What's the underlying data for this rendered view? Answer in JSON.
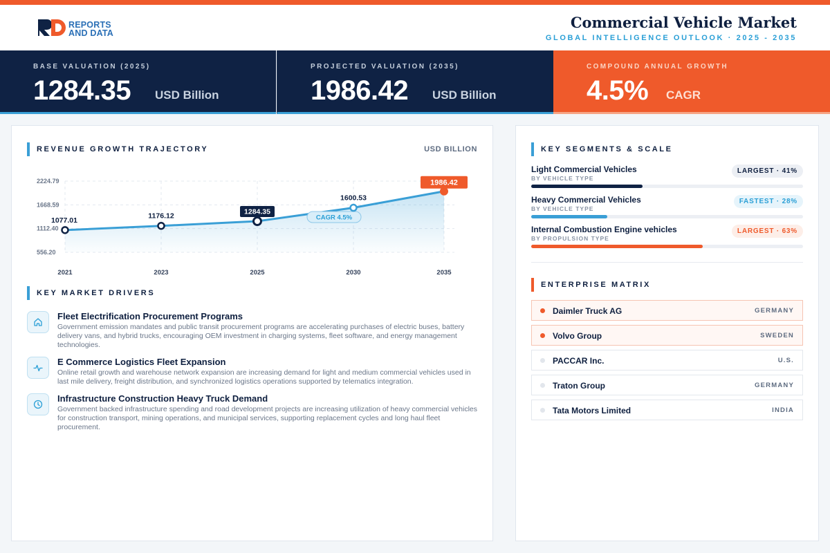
{
  "header": {
    "brand_line1": "REPORTS",
    "brand_line2": "AND DATA",
    "title": "Commercial Vehicle Market",
    "subtitle": "GLOBAL INTELLIGENCE OUTLOOK  ·  2025 - 2035"
  },
  "stats": [
    {
      "label": "BASE VALUATION (2025)",
      "value": "1284.35",
      "unit": "USD Billion"
    },
    {
      "label": "PROJECTED VALUATION (2035)",
      "value": "1986.42",
      "unit": "USD Billion"
    },
    {
      "label": "COMPOUND ANNUAL GROWTH",
      "value": "4.5%",
      "unit": "CAGR"
    }
  ],
  "chart_section": {
    "title": "REVENUE GROWTH TRAJECTORY",
    "unit": "USD BILLION"
  },
  "chart_data": {
    "type": "line",
    "categories": [
      "2021",
      "2023",
      "2025",
      "2030",
      "2035"
    ],
    "values": [
      1077.01,
      1176.12,
      1284.35,
      1600.53,
      1986.42
    ],
    "data_labels": [
      "1077.01",
      "1176.12",
      "1284.35",
      "1600.53",
      "1986.42"
    ],
    "y_ticks": [
      "556.20",
      "1112.40",
      "1668.59",
      "2224.79"
    ],
    "ylim": [
      556.2,
      2224.79
    ],
    "annotation": "CAGR 4.5%",
    "grid": true,
    "line_color": "#3a9fd6",
    "highlight_color": "#ef5a2b"
  },
  "drivers_section": {
    "title": "KEY MARKET DRIVERS"
  },
  "drivers": [
    {
      "icon": "home-icon",
      "title": "Fleet Electrification Procurement Programs",
      "desc": "Government emission mandates and public transit procurement programs are accelerating purchases of electric buses, battery delivery vans, and hybrid trucks, encouraging OEM investment in charging systems, fleet software, and energy management technologies."
    },
    {
      "icon": "activity-icon",
      "title": "E Commerce Logistics Fleet Expansion",
      "desc": "Online retail growth and warehouse network expansion are increasing demand for light and medium commercial vehicles used in last mile delivery, freight distribution, and synchronized logistics operations supported by telematics integration."
    },
    {
      "icon": "clock-icon",
      "title": "Infrastructure Construction Heavy Truck Demand",
      "desc": "Government backed infrastructure spending and road development projects are increasing utilization of heavy commercial vehicles for construction transport, mining operations, and municipal services, supporting replacement cycles and long haul fleet procurement."
    }
  ],
  "segments_section": {
    "title": "KEY SEGMENTS & SCALE"
  },
  "segments": [
    {
      "name": "Light Commercial Vehicles",
      "type": "BY VEHICLE TYPE",
      "badge": "LARGEST · 41%",
      "share": 41,
      "color": "#0f2244",
      "badge_bg": "#eceff4",
      "badge_fg": "#0e1f3f"
    },
    {
      "name": "Heavy Commercial Vehicles",
      "type": "BY VEHICLE TYPE",
      "badge": "FASTEST · 28%",
      "share": 28,
      "color": "#3a9fd6",
      "badge_bg": "#e6f4fb",
      "badge_fg": "#2a9fd6"
    },
    {
      "name": "Internal Combustion Engine vehicles",
      "type": "BY PROPULSION TYPE",
      "badge": "LARGEST · 63%",
      "share": 63,
      "color": "#ef5a2b",
      "badge_bg": "#fdeee8",
      "badge_fg": "#ef5a2b"
    }
  ],
  "enterprise_section": {
    "title": "ENTERPRISE MATRIX"
  },
  "enterprises": [
    {
      "name": "Daimler Truck AG",
      "country": "GERMANY",
      "highlight": true
    },
    {
      "name": "Volvo Group",
      "country": "SWEDEN",
      "highlight": true
    },
    {
      "name": "PACCAR Inc.",
      "country": "U.S.",
      "highlight": false
    },
    {
      "name": "Traton Group",
      "country": "GERMANY",
      "highlight": false
    },
    {
      "name": "Tata Motors Limited",
      "country": "INDIA",
      "highlight": false
    }
  ]
}
